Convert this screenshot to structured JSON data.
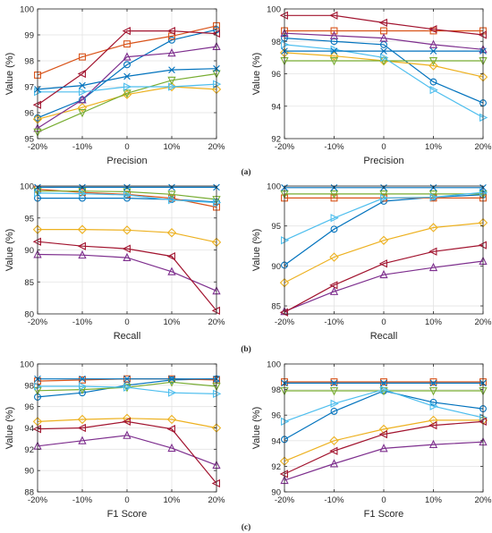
{
  "figure": {
    "captions": [
      "(a)",
      "(b)",
      "(c)"
    ]
  },
  "chart_data": [
    {
      "type": "line",
      "xlabel": "Precision",
      "ylabel": "Value (%)",
      "categories": [
        "-20%",
        "-10%",
        "0",
        "10%",
        "20%"
      ],
      "ylim": [
        95,
        100
      ],
      "yticks": [
        95,
        96,
        97,
        98,
        99,
        100
      ],
      "grid": true,
      "series": [
        {
          "color": "#0072BD",
          "marker": "circle",
          "values": [
            95.8,
            96.5,
            97.85,
            98.8,
            99.2
          ]
        },
        {
          "color": "#D95319",
          "marker": "square",
          "values": [
            97.45,
            98.15,
            98.65,
            98.95,
            99.35
          ]
        },
        {
          "color": "#EDB120",
          "marker": "diamond",
          "values": [
            95.75,
            96.2,
            96.7,
            97.0,
            96.9
          ]
        },
        {
          "color": "#7E2F8E",
          "marker": "triangle-up",
          "values": [
            95.4,
            96.5,
            98.15,
            98.3,
            98.55
          ]
        },
        {
          "color": "#77AC30",
          "marker": "triangle-down",
          "values": [
            95.25,
            96.0,
            96.75,
            97.25,
            97.5
          ]
        },
        {
          "color": "#4DBEEE",
          "marker": "triangle-right",
          "values": [
            96.8,
            96.8,
            97.0,
            97.0,
            97.1
          ]
        },
        {
          "color": "#A2142F",
          "marker": "triangle-left",
          "values": [
            96.3,
            97.5,
            99.15,
            99.15,
            99.05
          ]
        },
        {
          "color": "#0072BD",
          "marker": "x",
          "values": [
            96.9,
            97.05,
            97.4,
            97.65,
            97.7
          ]
        }
      ]
    },
    {
      "type": "line",
      "xlabel": "Precision",
      "ylabel": "Value (%)",
      "categories": [
        "-20%",
        "-10%",
        "0",
        "10%",
        "20%"
      ],
      "ylim": [
        92,
        100
      ],
      "yticks": [
        92,
        94,
        96,
        98,
        100
      ],
      "grid": true,
      "series": [
        {
          "color": "#0072BD",
          "marker": "circle",
          "values": [
            98.2,
            98.0,
            97.8,
            95.5,
            94.2
          ]
        },
        {
          "color": "#D95319",
          "marker": "square",
          "values": [
            98.65,
            98.65,
            98.65,
            98.65,
            98.65
          ]
        },
        {
          "color": "#EDB120",
          "marker": "diamond",
          "values": [
            97.3,
            97.1,
            96.8,
            96.5,
            95.8
          ]
        },
        {
          "color": "#7E2F8E",
          "marker": "triangle-up",
          "values": [
            98.5,
            98.35,
            98.2,
            97.8,
            97.5
          ]
        },
        {
          "color": "#77AC30",
          "marker": "triangle-down",
          "values": [
            96.8,
            96.8,
            96.8,
            96.8,
            96.8
          ]
        },
        {
          "color": "#4DBEEE",
          "marker": "triangle-right",
          "values": [
            97.8,
            97.5,
            97.0,
            95.0,
            93.3
          ]
        },
        {
          "color": "#A2142F",
          "marker": "triangle-left",
          "values": [
            99.6,
            99.6,
            99.15,
            98.75,
            98.4
          ]
        },
        {
          "color": "#0072BD",
          "marker": "x",
          "values": [
            97.4,
            97.4,
            97.4,
            97.4,
            97.4
          ]
        }
      ]
    },
    {
      "type": "line",
      "xlabel": "Recall",
      "ylabel": "Value (%)",
      "categories": [
        "-20%",
        "-10%",
        "0",
        "10%",
        "20%"
      ],
      "ylim": [
        80,
        100
      ],
      "yticks": [
        80,
        85,
        90,
        95,
        100
      ],
      "grid": true,
      "series": [
        {
          "color": "#0072BD",
          "marker": "circle",
          "values": [
            98.1,
            98.1,
            98.1,
            97.9,
            97.5
          ]
        },
        {
          "color": "#D95319",
          "marker": "square",
          "values": [
            99.5,
            99.0,
            98.7,
            98.1,
            96.7
          ]
        },
        {
          "color": "#EDB120",
          "marker": "diamond",
          "values": [
            93.2,
            93.2,
            93.1,
            92.7,
            91.2
          ]
        },
        {
          "color": "#7E2F8E",
          "marker": "triangle-up",
          "values": [
            89.3,
            89.2,
            88.8,
            86.6,
            83.6
          ]
        },
        {
          "color": "#77AC30",
          "marker": "triangle-down",
          "values": [
            99.2,
            99.2,
            99.1,
            98.7,
            97.9
          ]
        },
        {
          "color": "#4DBEEE",
          "marker": "triangle-right",
          "values": [
            98.9,
            98.8,
            98.6,
            97.8,
            97.4
          ]
        },
        {
          "color": "#A2142F",
          "marker": "triangle-left",
          "values": [
            91.3,
            90.6,
            90.2,
            89.0,
            80.5
          ]
        },
        {
          "color": "#0072BD",
          "marker": "x",
          "values": [
            99.8,
            99.8,
            99.8,
            99.8,
            99.8
          ]
        }
      ]
    },
    {
      "type": "line",
      "xlabel": "Recall",
      "ylabel": "Value (%)",
      "categories": [
        "-20%",
        "-10%",
        "0",
        "10%",
        "20%"
      ],
      "ylim": [
        84,
        100
      ],
      "yticks": [
        85,
        90,
        95,
        100
      ],
      "grid": true,
      "series": [
        {
          "color": "#0072BD",
          "marker": "circle",
          "values": [
            90.1,
            94.6,
            98.1,
            98.6,
            98.9
          ]
        },
        {
          "color": "#D95319",
          "marker": "square",
          "values": [
            98.5,
            98.5,
            98.5,
            98.5,
            98.5
          ]
        },
        {
          "color": "#EDB120",
          "marker": "diamond",
          "values": [
            87.9,
            91.1,
            93.2,
            94.8,
            95.4
          ]
        },
        {
          "color": "#7E2F8E",
          "marker": "triangle-up",
          "values": [
            84.3,
            86.8,
            88.9,
            89.8,
            90.6
          ]
        },
        {
          "color": "#77AC30",
          "marker": "triangle-down",
          "values": [
            99.0,
            99.0,
            99.0,
            99.0,
            99.0
          ]
        },
        {
          "color": "#4DBEEE",
          "marker": "triangle-right",
          "values": [
            93.2,
            96.0,
            98.5,
            98.6,
            99.2
          ]
        },
        {
          "color": "#A2142F",
          "marker": "triangle-left",
          "values": [
            84.2,
            87.6,
            90.3,
            91.8,
            92.6
          ]
        },
        {
          "color": "#0072BD",
          "marker": "x",
          "values": [
            99.8,
            99.8,
            99.8,
            99.8,
            99.8
          ]
        }
      ]
    },
    {
      "type": "line",
      "xlabel": "F1 Score",
      "ylabel": "Value (%)",
      "categories": [
        "-20%",
        "-10%",
        "0",
        "10%",
        "20%"
      ],
      "ylim": [
        88,
        100
      ],
      "yticks": [
        88,
        90,
        92,
        94,
        96,
        98,
        100
      ],
      "grid": true,
      "series": [
        {
          "color": "#0072BD",
          "marker": "circle",
          "values": [
            96.9,
            97.3,
            98.0,
            98.5,
            98.6
          ]
        },
        {
          "color": "#D95319",
          "marker": "square",
          "values": [
            98.4,
            98.5,
            98.6,
            98.6,
            98.5
          ]
        },
        {
          "color": "#EDB120",
          "marker": "diamond",
          "values": [
            94.6,
            94.8,
            94.9,
            94.8,
            94.0
          ]
        },
        {
          "color": "#7E2F8E",
          "marker": "triangle-up",
          "values": [
            92.3,
            92.8,
            93.3,
            92.1,
            90.5
          ]
        },
        {
          "color": "#77AC30",
          "marker": "triangle-down",
          "values": [
            97.5,
            97.6,
            97.8,
            98.3,
            97.9
          ]
        },
        {
          "color": "#4DBEEE",
          "marker": "triangle-right",
          "values": [
            97.9,
            97.9,
            97.8,
            97.3,
            97.2
          ]
        },
        {
          "color": "#A2142F",
          "marker": "triangle-left",
          "values": [
            93.9,
            94.0,
            94.6,
            93.9,
            88.8
          ]
        },
        {
          "color": "#0072BD",
          "marker": "x",
          "values": [
            98.6,
            98.6,
            98.6,
            98.6,
            98.6
          ]
        }
      ]
    },
    {
      "type": "line",
      "xlabel": "F1 Score",
      "ylabel": "Value (%)",
      "categories": [
        "-20%",
        "-10%",
        "0",
        "10%",
        "20%"
      ],
      "ylim": [
        90,
        100
      ],
      "yticks": [
        90,
        92,
        94,
        96,
        98,
        100
      ],
      "grid": true,
      "series": [
        {
          "color": "#0072BD",
          "marker": "circle",
          "values": [
            94.1,
            96.3,
            97.9,
            97.0,
            96.5
          ]
        },
        {
          "color": "#D95319",
          "marker": "square",
          "values": [
            98.6,
            98.6,
            98.6,
            98.6,
            98.6
          ]
        },
        {
          "color": "#EDB120",
          "marker": "diamond",
          "values": [
            92.4,
            94.0,
            94.9,
            95.6,
            95.6
          ]
        },
        {
          "color": "#7E2F8E",
          "marker": "triangle-up",
          "values": [
            90.9,
            92.2,
            93.4,
            93.7,
            93.9
          ]
        },
        {
          "color": "#77AC30",
          "marker": "triangle-down",
          "values": [
            97.9,
            97.9,
            97.9,
            97.9,
            97.9
          ]
        },
        {
          "color": "#4DBEEE",
          "marker": "triangle-right",
          "values": [
            95.5,
            96.9,
            98.0,
            96.7,
            95.8
          ]
        },
        {
          "color": "#A2142F",
          "marker": "triangle-left",
          "values": [
            91.4,
            93.2,
            94.5,
            95.2,
            95.5
          ]
        },
        {
          "color": "#0072BD",
          "marker": "x",
          "values": [
            98.5,
            98.5,
            98.5,
            98.5,
            98.5
          ]
        }
      ]
    }
  ]
}
